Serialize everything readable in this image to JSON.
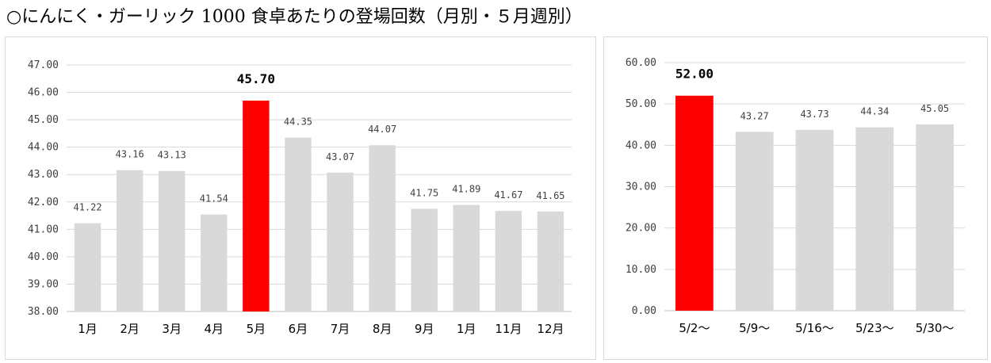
{
  "page": {
    "title": "○にんにく・ガーリック 1000 食卓あたりの登場回数（月別・５月週別）"
  },
  "colors": {
    "bar": "#d9d9d9",
    "highlight": "#ff0000",
    "grid": "#d9d9d9",
    "axis": "#bfbfbf"
  },
  "chart_data": [
    {
      "type": "bar",
      "title": "",
      "xlabel": "",
      "ylabel": "",
      "categories": [
        "1月",
        "2月",
        "3月",
        "4月",
        "5月",
        "6月",
        "7月",
        "8月",
        "9月",
        "1月",
        "11月",
        "12月"
      ],
      "values": [
        41.22,
        43.16,
        43.13,
        41.54,
        45.7,
        44.35,
        43.07,
        44.07,
        41.75,
        41.89,
        41.67,
        41.65
      ],
      "data_labels": [
        "41.22",
        "43.16",
        "43.13",
        "41.54",
        "45.70",
        "44.35",
        "43.07",
        "44.07",
        "41.75",
        "41.89",
        "41.67",
        "41.65"
      ],
      "highlight_index": 4,
      "ylim": [
        38,
        47
      ],
      "yticks": [
        38,
        39,
        40,
        41,
        42,
        43,
        44,
        45,
        46,
        47
      ],
      "ytick_labels": [
        "38.00",
        "39.00",
        "40.00",
        "41.00",
        "42.00",
        "43.00",
        "44.00",
        "45.00",
        "46.00",
        "47.00"
      ],
      "grid": true,
      "legend": "none"
    },
    {
      "type": "bar",
      "title": "",
      "xlabel": "",
      "ylabel": "",
      "categories": [
        "5/2～",
        "5/9～",
        "5/16～",
        "5/23～",
        "5/30～"
      ],
      "values": [
        52.0,
        43.27,
        43.73,
        44.34,
        45.05
      ],
      "data_labels": [
        "52.00",
        "43.27",
        "43.73",
        "44.34",
        "45.05"
      ],
      "highlight_index": 0,
      "ylim": [
        0,
        60
      ],
      "yticks": [
        0,
        10,
        20,
        30,
        40,
        50,
        60
      ],
      "ytick_labels": [
        "0.00",
        "10.00",
        "20.00",
        "30.00",
        "40.00",
        "50.00",
        "60.00"
      ],
      "grid": true,
      "legend": "none"
    }
  ]
}
